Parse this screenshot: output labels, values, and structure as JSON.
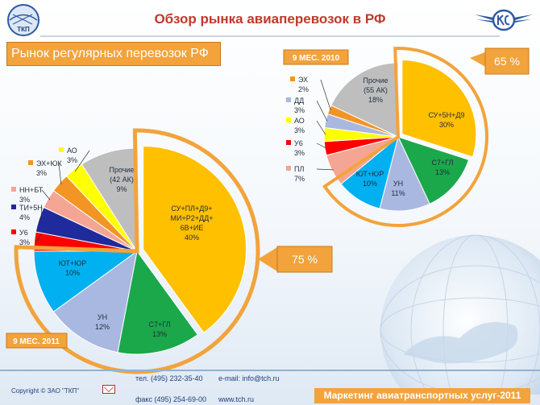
{
  "slide": {
    "title": "Обзор рынка авиаперевозок в РФ",
    "section_label": "Рынок регулярных перевозок РФ",
    "logo_left_text": "ТКП"
  },
  "colors": {
    "orange": "#f2a33b",
    "title_red": "#c0392b",
    "gold": "#ffc000",
    "green": "#1ba84a",
    "light_blue": "#a9b8e0",
    "sky": "#00b0f0",
    "salmon": "#f4a593",
    "red": "#ff0000",
    "navy": "#1f2a9c",
    "yellow": "#ffff00",
    "orange_slice": "#f29524",
    "gray": "#bebebe"
  },
  "chart_data": [
    {
      "type": "pie",
      "period_label": "9 МЕС. 2011",
      "highlight_label": "75 %",
      "slices": [
        {
          "label": "СУ+ПЛ+Д9+ МИ+Р2+ДД+ 6В+ИЕ",
          "value_label": "40%",
          "value": 40,
          "color": "#ffc000",
          "exploded": true
        },
        {
          "label": "С7+ГЛ",
          "value_label": "13%",
          "value": 13,
          "color": "#1ba84a"
        },
        {
          "label": "УН",
          "value_label": "12%",
          "value": 12,
          "color": "#a9b8e0"
        },
        {
          "label": "ЮТ+ЮР",
          "value_label": "10%",
          "value": 10,
          "color": "#00b0f0"
        },
        {
          "label": "У6",
          "value_label": "3%",
          "value": 3,
          "color": "#ff0000"
        },
        {
          "label": "ТИ+5Н",
          "value_label": "4%",
          "value": 4,
          "color": "#1f2a9c"
        },
        {
          "label": "НН+БТ",
          "value_label": "3%",
          "value": 3,
          "color": "#f4a593"
        },
        {
          "label": "ЭХ+ЮК",
          "value_label": "3%",
          "value": 3,
          "color": "#f29524"
        },
        {
          "label": "АО",
          "value_label": "3%",
          "value": 3,
          "color": "#ffff00"
        },
        {
          "label": "Прочие (42 АК)",
          "value_label": "9%",
          "value": 9,
          "color": "#bebebe"
        }
      ]
    },
    {
      "type": "pie",
      "period_label": "9 МЕС. 2010",
      "highlight_label": "65 %",
      "slices": [
        {
          "label": "СУ+5Н+Д9",
          "value_label": "30%",
          "value": 30,
          "color": "#ffc000",
          "exploded": true
        },
        {
          "label": "С7+ГЛ",
          "value_label": "13%",
          "value": 13,
          "color": "#1ba84a"
        },
        {
          "label": "УН",
          "value_label": "11%",
          "value": 11,
          "color": "#a9b8e0"
        },
        {
          "label": "ЮТ+ЮР",
          "value_label": "10%",
          "value": 10,
          "color": "#00b0f0"
        },
        {
          "label": "ПЛ",
          "value_label": "7%",
          "value": 7,
          "color": "#f4a593"
        },
        {
          "label": "У6",
          "value_label": "3%",
          "value": 3,
          "color": "#ff0000"
        },
        {
          "label": "АО",
          "value_label": "3%",
          "value": 3,
          "color": "#ffff00"
        },
        {
          "label": "ДД",
          "value_label": "3%",
          "value": 3,
          "color": "#a9b8e0"
        },
        {
          "label": "ЭХ",
          "value_label": "2%",
          "value": 2,
          "color": "#f29524"
        },
        {
          "label": "Прочие (55 АК)",
          "value_label": "18%",
          "value": 18,
          "color": "#bebebe"
        }
      ]
    }
  ],
  "footer": {
    "copyright": "Copyright © ЗАО \"ТКП\"",
    "phone": "тел. (495) 232-35-40",
    "email": "e-mail: info@tch.ru",
    "fax": "факс (495) 254-69-00",
    "site": "www.tch.ru",
    "brand": "Маркетинг авиатранспортных услуг-2011"
  }
}
